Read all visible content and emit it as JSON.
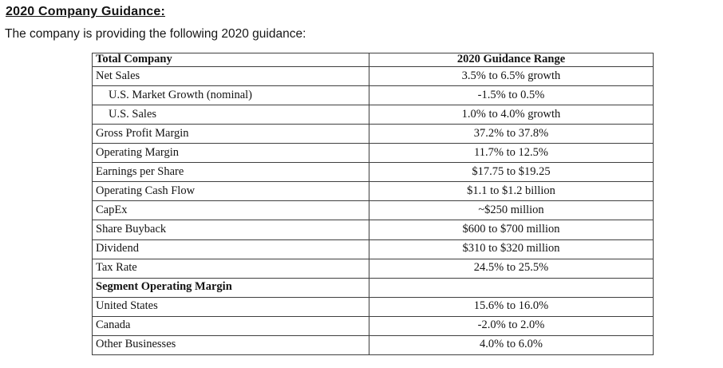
{
  "page": {
    "title": "2020 Company Guidance:",
    "intro": "The company is providing the following 2020 guidance:"
  },
  "table": {
    "columns": [
      "Total Company",
      "2020 Guidance Range"
    ],
    "border_color": "#3f3f3f",
    "rows": [
      {
        "label": "Net Sales",
        "value": "3.5% to 6.5% growth",
        "indent": false,
        "bold": false
      },
      {
        "label": "U.S. Market Growth (nominal)",
        "value": "-1.5% to 0.5%",
        "indent": true,
        "bold": false
      },
      {
        "label": "U.S. Sales",
        "value": "1.0% to 4.0% growth",
        "indent": true,
        "bold": false
      },
      {
        "label": "Gross Profit Margin",
        "value": "37.2% to 37.8%",
        "indent": false,
        "bold": false
      },
      {
        "label": "Operating Margin",
        "value": "11.7% to 12.5%",
        "indent": false,
        "bold": false
      },
      {
        "label": "Earnings per Share",
        "value": "$17.75 to $19.25",
        "indent": false,
        "bold": false
      },
      {
        "label": "Operating Cash Flow",
        "value": "$1.1 to $1.2 billion",
        "indent": false,
        "bold": false
      },
      {
        "label": "CapEx",
        "value": "~$250 million",
        "indent": false,
        "bold": false
      },
      {
        "label": "Share Buyback",
        "value": "$600 to $700 million",
        "indent": false,
        "bold": false
      },
      {
        "label": "Dividend",
        "value": "$310 to $320 million",
        "indent": false,
        "bold": false
      },
      {
        "label": "Tax Rate",
        "value": "24.5% to 25.5%",
        "indent": false,
        "bold": false
      },
      {
        "label": "Segment Operating Margin",
        "value": "",
        "indent": false,
        "bold": true
      },
      {
        "label": "United States",
        "value": "15.6% to 16.0%",
        "indent": false,
        "bold": false
      },
      {
        "label": "Canada",
        "value": "-2.0% to 2.0%",
        "indent": false,
        "bold": false
      },
      {
        "label": "Other Businesses",
        "value": "4.0% to 6.0%",
        "indent": false,
        "bold": false
      }
    ]
  }
}
